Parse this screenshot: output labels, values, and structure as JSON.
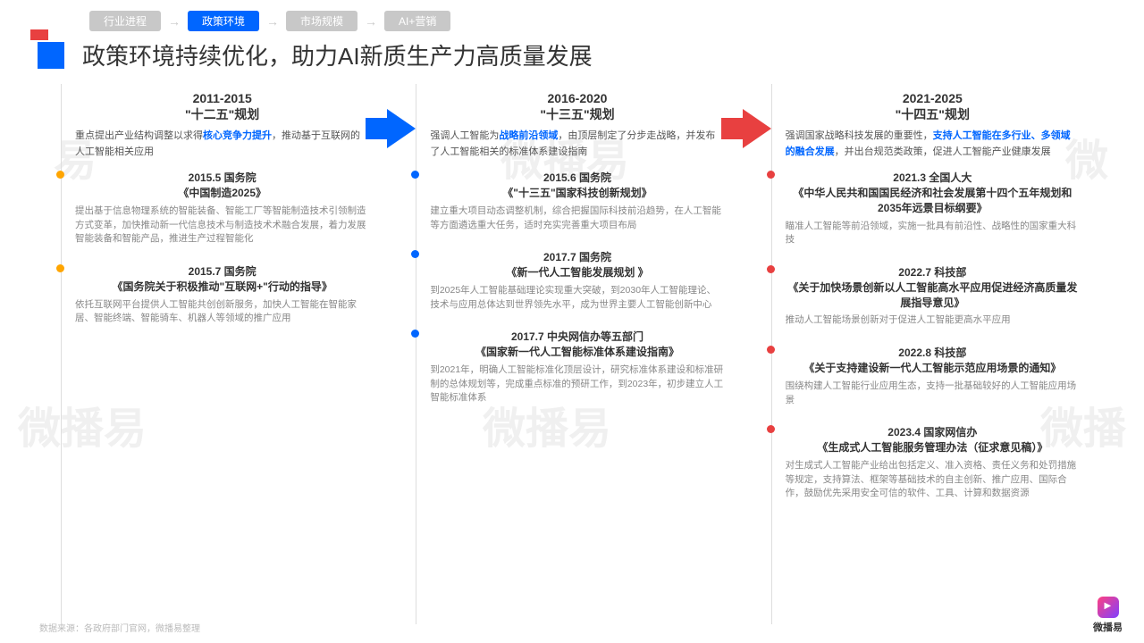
{
  "nav": [
    "行业进程",
    "政策环境",
    "市场规模",
    "AI+营销"
  ],
  "nav_active": 1,
  "title": "政策环境持续优化，助力AI新质生产力高质量发展",
  "periods": [
    {
      "years": "2011-2015",
      "name": "\"十二五\"规划",
      "d1": "重点提出产业结构调整以求得",
      "hl": "核心竞争力提升",
      "d2": "，推动基于互联网的人工智能相关应用",
      "arrow": "blue"
    },
    {
      "years": "2016-2020",
      "name": "\"十三五\"规划",
      "d1": "强调人工智能为",
      "hl": "战略前沿领域",
      "d2": "，由顶层制定了分步走战略，并发布了人工智能相关的标准体系建设指南",
      "arrow": "red"
    },
    {
      "years": "2021-2025",
      "name": "\"十四五\"规划",
      "d1": "强调国家战略科技发展的重要性，",
      "hl": "支持人工智能在多行业、多领域的融合发展",
      "d2": "，并出台规范类政策，促进人工智能产业健康发展"
    }
  ],
  "cols": [
    [
      {
        "t": "2015.5 国务院\n《中国制造2025》",
        "b": "提出基于信息物理系统的智能装备、智能工厂等智能制造技术引领制造方式变革，加快推动新一代信息技术与制造技术术融合发展，着力发展智能装备和智能产品，推进生产过程智能化"
      },
      {
        "t": "2015.7 国务院\n《国务院关于积极推动\"互联网+\"行动的指导》",
        "b": "依托互联网平台提供人工智能共创创新服务，加快人工智能在智能家居、智能终端、智能骑车、机器人等领域的推广应用"
      }
    ],
    [
      {
        "t": "2015.6 国务院\n《\"十三五\"国家科技创新规划》",
        "b": "建立重大项目动态调整机制，综合把握国际科技前沿趋势，在人工智能等方面遴选重大任务，适时充实完善重大项目布局"
      },
      {
        "t": "2017.7 国务院\n《新一代人工智能发展规划 》",
        "b": "到2025年人工智能基础理论实现重大突破，到2030年人工智能理论、技术与应用总体达到世界领先水平，成为世界主要人工智能创新中心"
      },
      {
        "t": "2017.7 中央网信办等五部门\n《国家新一代人工智能标准体系建设指南》",
        "b": "到2021年，明确人工智能标准化顶层设计，研究标准体系建设和标准研制的总体规划等，完成重点标准的预研工作，到2023年，初步建立人工智能标准体系"
      }
    ],
    [
      {
        "t": "2021.3 全国人大\n《中华人民共和国国民经济和社会发展第十四个五年规划和2035年远景目标纲要》",
        "b": "瞄准人工智能等前沿领域，实施一批具有前沿性、战略性的国家重大科技"
      },
      {
        "t": "2022.7 科技部\n《关于加快场景创新以人工智能高水平应用促进经济高质量发展指导意见》",
        "b": "推动人工智能场景创新对于促进人工智能更高水平应用"
      },
      {
        "t": "2022.8 科技部\n《关于支持建设新一代人工智能示范应用场景的通知》",
        "b": "围绕构建人工智能行业应用生态，支持一批基础较好的人工智能应用场景"
      },
      {
        "t": "2023.4 国家网信办\n《生成式人工智能服务管理办法（征求意见稿）》",
        "b": "对生成式人工智能产业给出包括定义、准入资格、责任义务和处罚措施等规定，支持算法、框架等基础技术的自主创新、推广应用、国际合作，鼓励优先采用安全可信的软件、工具、计算和数据资源"
      }
    ]
  ],
  "footer": "数据来源：各政府部门官网，微播易整理",
  "logo": "微播易",
  "colors": {
    "blue": "#0066ff",
    "red": "#e84040",
    "orange": "#ffa500",
    "grey": "#c8c8c8"
  }
}
